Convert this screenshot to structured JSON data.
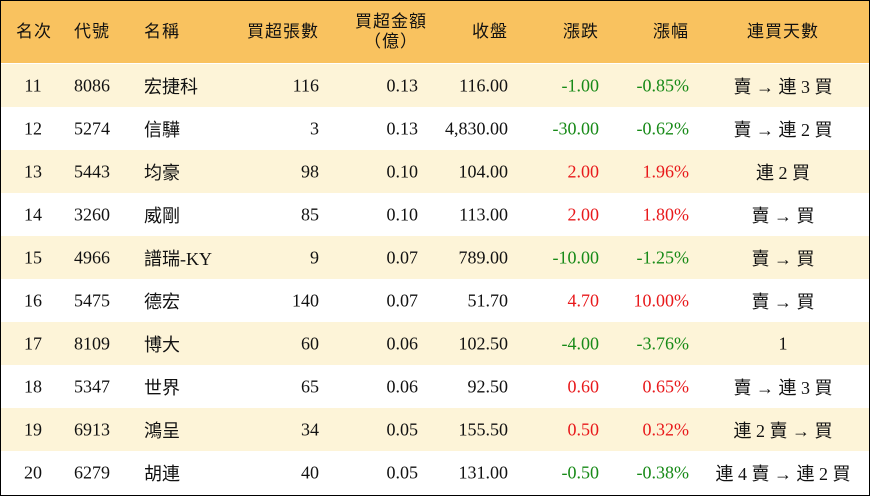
{
  "table": {
    "header": [
      "名次",
      "代號",
      "名稱",
      "買超張數",
      [
        "買超金額",
        "（億）"
      ],
      "收盤",
      "漲跌",
      "漲幅",
      "連買天數"
    ],
    "rows": [
      [
        "11",
        "8086",
        "宏捷科",
        "116",
        "0.13",
        "116.00",
        "-1.00",
        "-0.85%",
        "賣 → 連 3 買"
      ],
      [
        "12",
        "5274",
        "信驊",
        "3",
        "0.13",
        "4,830.00",
        "-30.00",
        "-0.62%",
        "賣 → 連 2 買"
      ],
      [
        "13",
        "5443",
        "均豪",
        "98",
        "0.10",
        "104.00",
        "2.00",
        "1.96%",
        "連 2 買"
      ],
      [
        "14",
        "3260",
        "威剛",
        "85",
        "0.10",
        "113.00",
        "2.00",
        "1.80%",
        "賣 → 買"
      ],
      [
        "15",
        "4966",
        "譜瑞-KY",
        "9",
        "0.07",
        "789.00",
        "-10.00",
        "-1.25%",
        "賣 → 買"
      ],
      [
        "16",
        "5475",
        "德宏",
        "140",
        "0.07",
        "51.70",
        "4.70",
        "10.00%",
        "賣 → 買"
      ],
      [
        "17",
        "8109",
        "博大",
        "60",
        "0.06",
        "102.50",
        "-4.00",
        "-3.76%",
        "1"
      ],
      [
        "18",
        "5347",
        "世界",
        "65",
        "0.06",
        "92.50",
        "0.60",
        "0.65%",
        "賣 → 連 3 買"
      ],
      [
        "19",
        "6913",
        "鴻呈",
        "34",
        "0.05",
        "155.50",
        "0.50",
        "0.32%",
        "連 2 賣 → 買"
      ],
      [
        "20",
        "6279",
        "胡連",
        "40",
        "0.05",
        "131.00",
        "-0.50",
        "-0.38%",
        "連 4 賣 → 連 2 買"
      ]
    ]
  }
}
